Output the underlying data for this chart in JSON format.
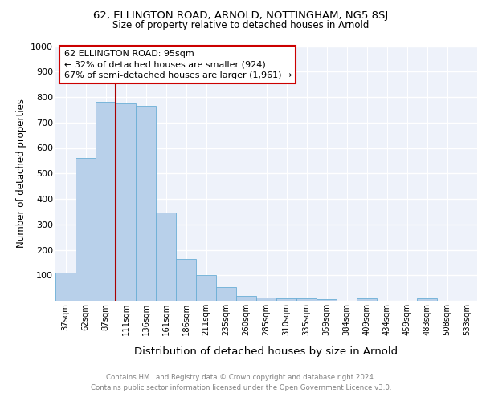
{
  "title1": "62, ELLINGTON ROAD, ARNOLD, NOTTINGHAM, NG5 8SJ",
  "title2": "Size of property relative to detached houses in Arnold",
  "xlabel": "Distribution of detached houses by size in Arnold",
  "ylabel": "Number of detached properties",
  "categories": [
    "37sqm",
    "62sqm",
    "87sqm",
    "111sqm",
    "136sqm",
    "161sqm",
    "186sqm",
    "211sqm",
    "235sqm",
    "260sqm",
    "285sqm",
    "310sqm",
    "335sqm",
    "359sqm",
    "384sqm",
    "409sqm",
    "434sqm",
    "459sqm",
    "483sqm",
    "508sqm",
    "533sqm"
  ],
  "values": [
    110,
    560,
    780,
    775,
    765,
    345,
    165,
    100,
    52,
    20,
    13,
    10,
    8,
    6,
    0,
    8,
    0,
    0,
    10,
    0,
    0
  ],
  "bar_color": "#b8d0ea",
  "bar_edge_color": "#6aaed6",
  "vline_color": "#aa0000",
  "annotation_text": "62 ELLINGTON ROAD: 95sqm\n← 32% of detached houses are smaller (924)\n67% of semi-detached houses are larger (1,961) →",
  "annotation_box_color": "#cc0000",
  "ylim": [
    0,
    1000
  ],
  "yticks": [
    0,
    100,
    200,
    300,
    400,
    500,
    600,
    700,
    800,
    900,
    1000
  ],
  "bg_color": "#eef2fa",
  "footer1": "Contains HM Land Registry data © Crown copyright and database right 2024.",
  "footer2": "Contains public sector information licensed under the Open Government Licence v3.0."
}
